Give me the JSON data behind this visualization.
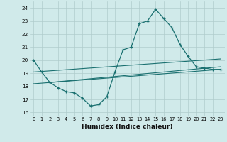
{
  "xlabel": "Humidex (Indice chaleur)",
  "bg_color": "#d0eaea",
  "grid_color": "#b0cccc",
  "line_color": "#1a7070",
  "xlim": [
    -0.5,
    23.5
  ],
  "ylim": [
    15.7,
    24.5
  ],
  "yticks": [
    16,
    17,
    18,
    19,
    20,
    21,
    22,
    23,
    24
  ],
  "xticks": [
    0,
    1,
    2,
    3,
    4,
    5,
    6,
    7,
    8,
    9,
    10,
    11,
    12,
    13,
    14,
    15,
    16,
    17,
    18,
    19,
    20,
    21,
    22,
    23
  ],
  "series1_x": [
    0,
    1,
    2,
    3,
    4,
    5,
    6,
    7,
    8,
    9,
    10,
    11,
    12,
    13,
    14,
    15,
    16,
    17,
    18,
    19,
    20,
    21,
    22,
    23
  ],
  "series1_y": [
    20.0,
    19.1,
    18.3,
    17.9,
    17.6,
    17.5,
    17.1,
    16.5,
    16.6,
    17.2,
    19.1,
    20.8,
    21.0,
    22.8,
    23.0,
    23.9,
    23.2,
    22.5,
    21.2,
    20.3,
    19.5,
    19.4,
    19.3,
    19.3
  ],
  "trend1_x": [
    0,
    23
  ],
  "trend1_y": [
    18.2,
    19.3
  ],
  "trend2_x": [
    0,
    23
  ],
  "trend2_y": [
    19.1,
    20.1
  ],
  "trend3_x": [
    2,
    23
  ],
  "trend3_y": [
    18.3,
    19.5
  ]
}
